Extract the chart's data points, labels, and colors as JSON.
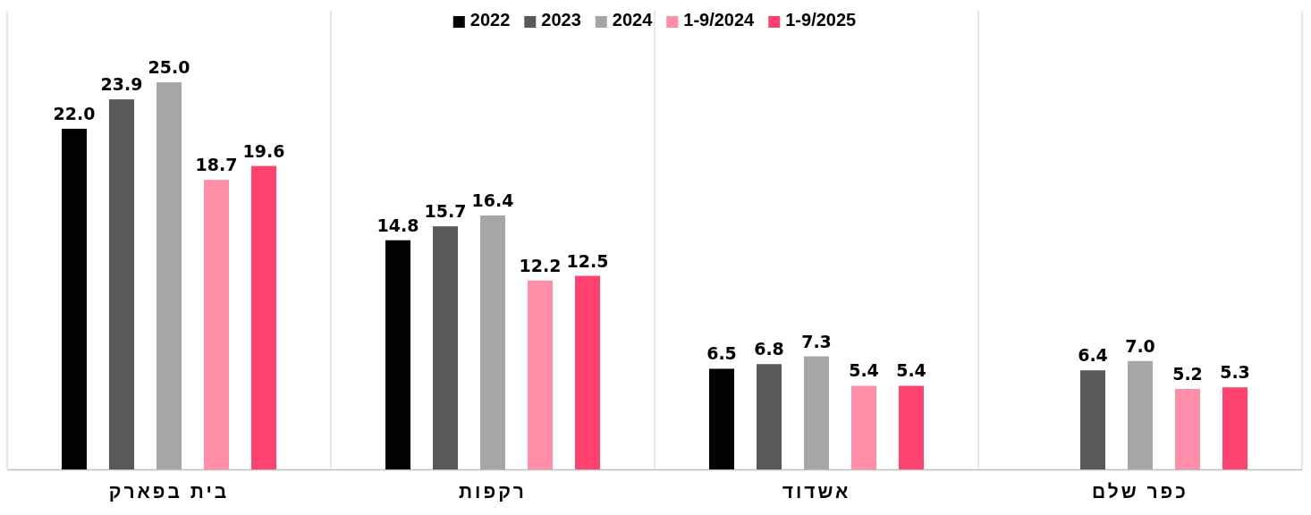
{
  "chart_data": {
    "type": "bar",
    "categories": [
      "בית בפארק",
      "רקפות",
      "אשדוד",
      "כפר שלם"
    ],
    "series": [
      {
        "name": "2022",
        "color": "#000000",
        "values": [
          22.0,
          14.8,
          6.5,
          null
        ],
        "value_labels": [
          "22.0",
          "14.8",
          "6.5",
          null
        ]
      },
      {
        "name": "2023",
        "color": "#595959",
        "values": [
          23.9,
          15.7,
          6.8,
          6.4
        ],
        "value_labels": [
          "23.9",
          "15.7",
          "6.8",
          "6.4"
        ]
      },
      {
        "name": "2024",
        "color": "#a6a6a6",
        "values": [
          25.0,
          16.4,
          7.3,
          7.0
        ],
        "value_labels": [
          "25.0",
          "16.4",
          "7.3",
          "7.0"
        ]
      },
      {
        "name": "1-9/2024",
        "color": "#ff8fa8",
        "values": [
          18.7,
          12.2,
          5.4,
          5.2
        ],
        "value_labels": [
          "18.7",
          "12.2",
          "5.4",
          "5.2"
        ]
      },
      {
        "name": "1-9/2025",
        "color": "#ff4370",
        "values": [
          19.6,
          12.5,
          5.4,
          5.3
        ],
        "value_labels": [
          "19.6",
          "12.5",
          "5.4",
          "5.3"
        ]
      }
    ],
    "legend": "top",
    "grid": false
  }
}
